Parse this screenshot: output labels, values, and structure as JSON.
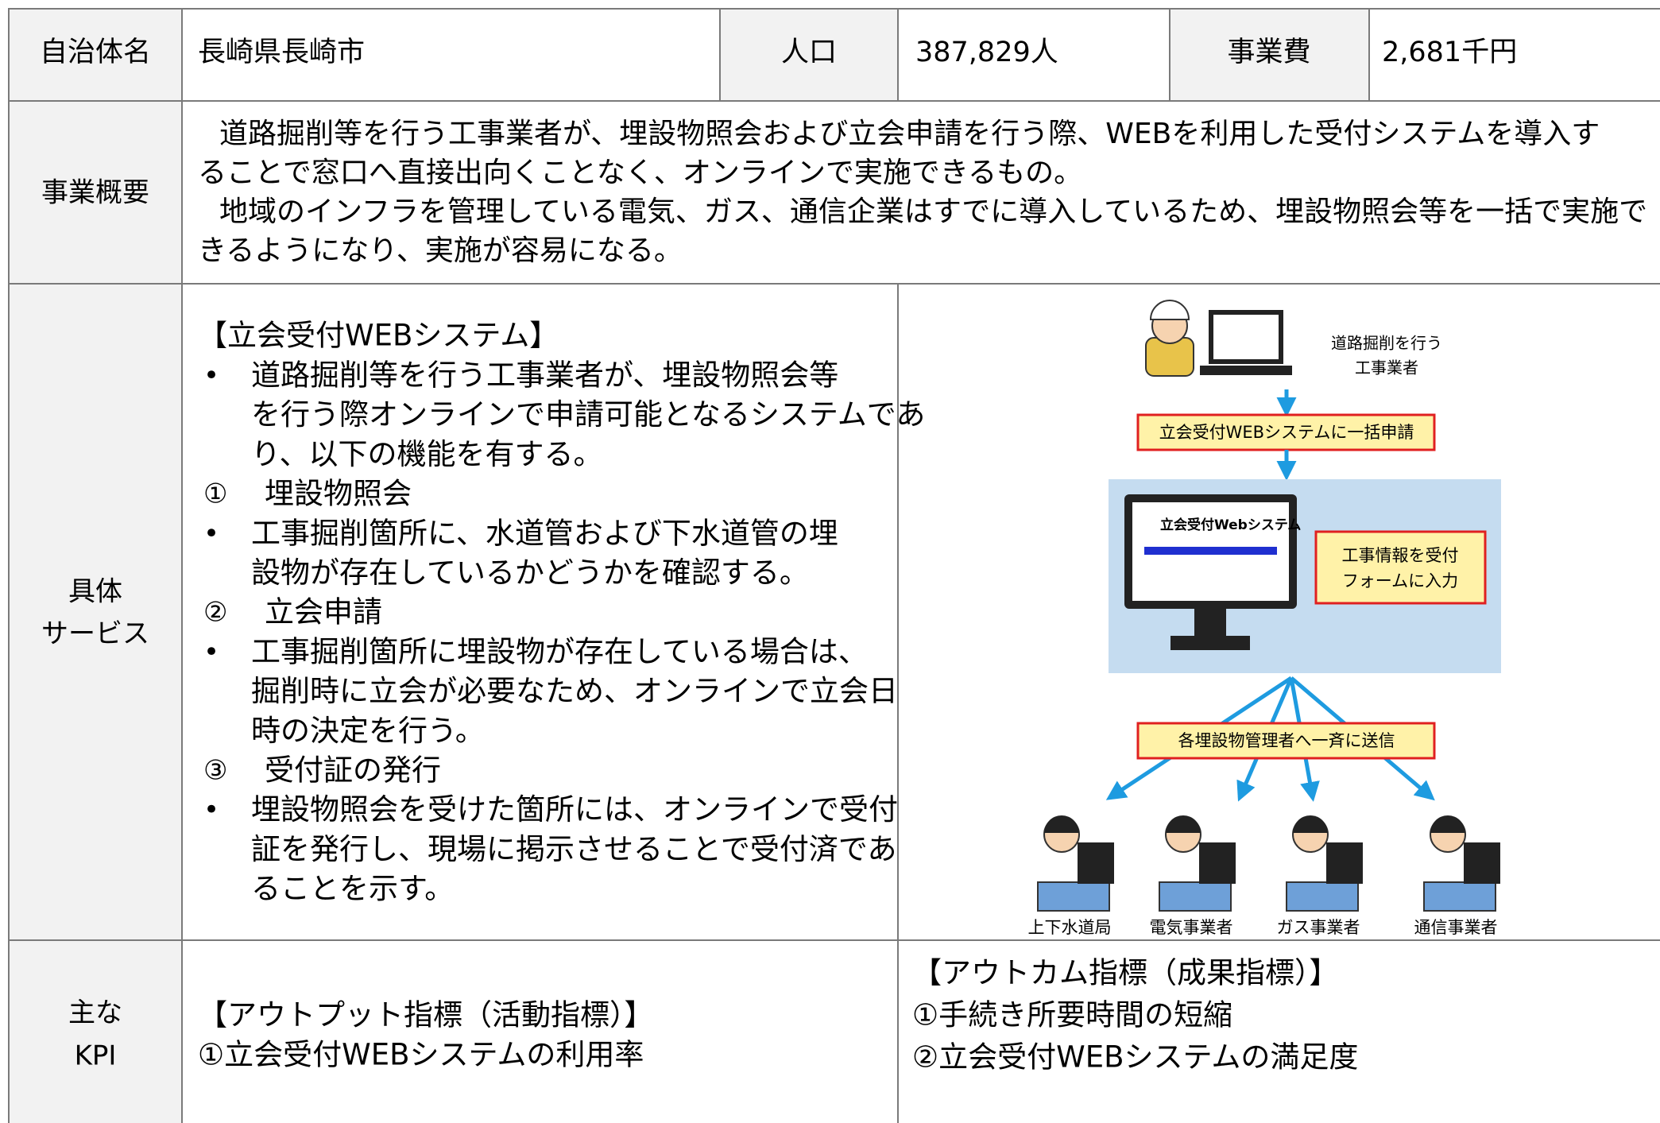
{
  "table": {
    "header": {
      "municipality_label": "自治体名",
      "municipality": "長崎県長崎市",
      "population_label": "人口",
      "population": "387,829人",
      "cost_label": "事業費",
      "cost": "2,681千円"
    },
    "overview": {
      "label": "事業概要",
      "paragraphs": [
        [
          "道路掘削等を行う工事業者が、埋設物照会および立会申請を行う際、WEBを利用した受付システムを導入す",
          "ることで窓口へ直接出向くことなく、オンラインで実施できるもの。"
        ],
        [
          "地域のインフラを管理している電気、ガス、通信企業はすでに導入しているため、埋設物照会等を一括で実施で",
          "きるようになり、実施が容易になる。"
        ]
      ]
    },
    "service": {
      "label": [
        "具体",
        "サービス"
      ],
      "heading": "【立会受付WEBシステム】",
      "items": [
        {
          "marker": "•",
          "lines": [
            "道路掘削等を行う工事業者が、埋設物照会等",
            "を行う際オンラインで申請可能となるシステムであ",
            "り、以下の機能を有する。"
          ]
        },
        {
          "marker": "①",
          "lines": [
            "埋設物照会"
          ]
        },
        {
          "marker": "•",
          "lines": [
            "工事掘削箇所に、水道管および下水道管の埋",
            "設物が存在しているかどうかを確認する。"
          ]
        },
        {
          "marker": "②",
          "lines": [
            "立会申請"
          ]
        },
        {
          "marker": "•",
          "lines": [
            "工事掘削箇所に埋設物が存在している場合は、",
            "掘削時に立会が必要なため、オンラインで立会日",
            "時の決定を行う。"
          ]
        },
        {
          "marker": "③",
          "lines": [
            "受付証の発行"
          ]
        },
        {
          "marker": "•",
          "lines": [
            "埋設物照会を受けた箇所には、オンラインで受付",
            "証を発行し、現場に掲示させることで受付済であ",
            "ることを示す。"
          ]
        }
      ]
    },
    "kpi": {
      "label": [
        "主な",
        "KPI"
      ],
      "output": [
        "【アウトプット指標（活動指標）】",
        "①立会受付WEBシステムの利用率"
      ],
      "outcome": [
        "【アウトカム指標（成果指標）】",
        "①手続き所要時間の短縮",
        "②立会受付WEBシステムの満足度"
      ]
    }
  },
  "diagram": {
    "worker_label": [
      "道路掘削を行う",
      "工事業者"
    ],
    "step1": "立会受付WEBシステムに一括申請",
    "screen_title": "立会受付Webシステム",
    "step2": [
      "工事情報を受付",
      "フォームに入力"
    ],
    "step3": "各埋設物管理者へ一斉に送信",
    "recipients": [
      "上下水道局",
      "電気事業者",
      "ガス事業者",
      "通信事業者"
    ]
  }
}
